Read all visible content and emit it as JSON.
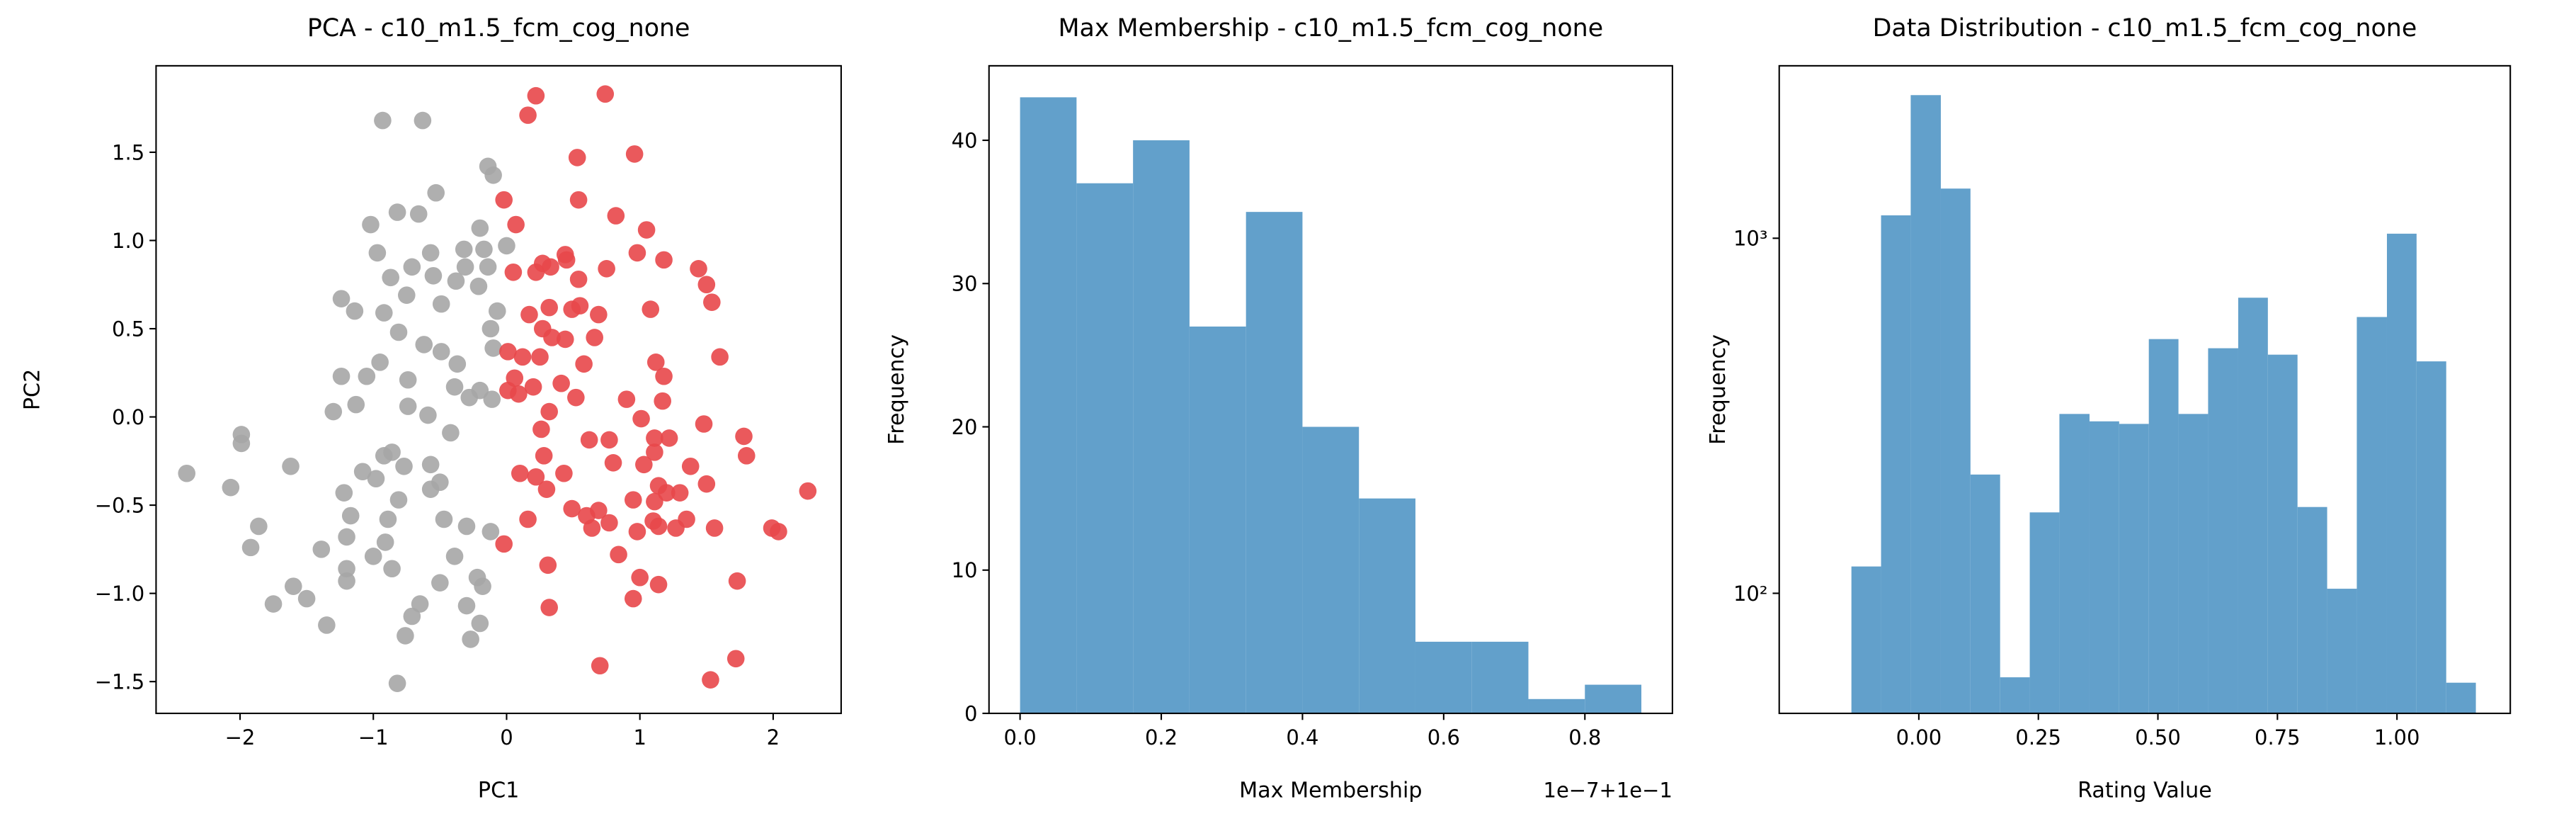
{
  "chart_data": [
    {
      "type": "scatter",
      "title": "PCA - c10_m1.5_fcm_cog_none",
      "xlabel": "PC1",
      "ylabel": "PC2",
      "xlim": [
        -2.63,
        2.51
      ],
      "ylim": [
        -1.68,
        1.99
      ],
      "xticks": [
        {
          "value": -2,
          "label": "−2"
        },
        {
          "value": -1,
          "label": "−1"
        },
        0,
        1,
        2
      ],
      "yticks": [
        {
          "value": -1.5,
          "label": "−1.5"
        },
        {
          "value": -1.0,
          "label": "−1.0"
        },
        {
          "value": -0.5,
          "label": "−0.5"
        },
        {
          "value": 0.0,
          "label": "0.0"
        },
        0.5,
        {
          "value": 1.0,
          "label": "1.0"
        },
        1.5
      ],
      "series": [
        {
          "color": "#a6a6a6",
          "x": [
            -0.93,
            -0.63,
            -0.14,
            -0.1,
            -0.53,
            -0.82,
            -0.66,
            -1.02,
            -0.2,
            -0.97,
            -0.57,
            -0.32,
            -0.17,
            0,
            -0.71,
            -0.55,
            -0.31,
            -0.14,
            -0.38,
            -0.21,
            -0.87,
            -0.75,
            -0.49,
            -1.24,
            -1.14,
            -0.92,
            -0.07,
            -0.12,
            -0.81,
            -0.62,
            -0.49,
            -0.1,
            -0.95,
            -0.37,
            -1.24,
            -1.05,
            -0.74,
            -0.39,
            -0.2,
            -0.28,
            -0.11,
            -1.13,
            -0.74,
            -0.59,
            -1.3,
            -0.42,
            -1.99,
            -1.99,
            -1.62,
            -0.92,
            -0.86,
            -0.77,
            -0.57,
            -2.4,
            -1.08,
            -2.07,
            -0.98,
            -0.5,
            -1.22,
            -0.81,
            -0.57,
            -1.86,
            -1.17,
            -0.89,
            -0.47,
            -0.3,
            -1.2,
            -0.12,
            -1.92,
            -1.39,
            -0.91,
            -1.0,
            -0.39,
            -1.2,
            -0.86,
            -1.2,
            -0.5,
            -0.22,
            -1.6,
            -0.18,
            -1.5,
            -1.75,
            -0.65,
            -0.3,
            -1.35,
            -0.2,
            -0.71,
            -0.76,
            -0.27,
            -0.82
          ],
          "y": [
            1.68,
            1.68,
            1.42,
            1.37,
            1.27,
            1.16,
            1.15,
            1.09,
            1.07,
            0.93,
            0.93,
            0.95,
            0.95,
            0.97,
            0.85,
            0.8,
            0.85,
            0.85,
            0.77,
            0.74,
            0.79,
            0.69,
            0.64,
            0.67,
            0.6,
            0.59,
            0.6,
            0.5,
            0.48,
            0.41,
            0.37,
            0.39,
            0.31,
            0.3,
            0.23,
            0.23,
            0.21,
            0.17,
            0.15,
            0.11,
            0.1,
            0.07,
            0.06,
            0.01,
            0.03,
            -0.09,
            -0.1,
            -0.15,
            -0.28,
            -0.22,
            -0.2,
            -0.28,
            -0.27,
            -0.32,
            -0.31,
            -0.4,
            -0.35,
            -0.37,
            -0.43,
            -0.47,
            -0.41,
            -0.62,
            -0.56,
            -0.58,
            -0.58,
            -0.62,
            -0.68,
            -0.65,
            -0.74,
            -0.75,
            -0.71,
            -0.79,
            -0.79,
            -0.86,
            -0.86,
            -0.93,
            -0.94,
            -0.91,
            -0.96,
            -0.96,
            -1.03,
            -1.06,
            -1.06,
            -1.07,
            -1.18,
            -1.17,
            -1.13,
            -1.24,
            -1.26,
            -1.51
          ]
        },
        {
          "color": "#e8474a",
          "x": [
            0.22,
            0.74,
            0.16,
            0.53,
            0.96,
            -0.02,
            0.54,
            0.07,
            0.82,
            1.05,
            0.44,
            0.45,
            0.98,
            1.18,
            0.27,
            0.22,
            0.33,
            0.05,
            1.44,
            1.5,
            1.54,
            0.54,
            0.75,
            0.49,
            0.55,
            0.32,
            0.17,
            1.08,
            0.69,
            0.27,
            0.44,
            0.66,
            0.34,
            0.01,
            0.12,
            0.25,
            0.58,
            1.12,
            1.6,
            0.06,
            0.2,
            0.41,
            1.18,
            0.01,
            0.52,
            0.09,
            0.9,
            1.17,
            0.32,
            1.01,
            0.26,
            0.62,
            0.77,
            1.78,
            1.48,
            1.11,
            1.22,
            0.28,
            1.11,
            1.8,
            1.03,
            0.8,
            0.1,
            0.22,
            0.43,
            1.38,
            2.26,
            1.14,
            0.95,
            1.2,
            1.3,
            1.5,
            0.3,
            1.11,
            0.49,
            0.69,
            0.16,
            0.6,
            0.77,
            1.1,
            1.35,
            1.56,
            1.99,
            2.04,
            0.64,
            0.98,
            1.14,
            1.27,
            -0.02,
            0.31,
            0.84,
            1.0,
            1.14,
            1.73,
            0.95,
            0.32,
            1.72,
            0.7,
            1.53
          ],
          "y": [
            1.82,
            1.83,
            1.71,
            1.47,
            1.49,
            1.23,
            1.23,
            1.09,
            1.14,
            1.06,
            0.92,
            0.89,
            0.93,
            0.89,
            0.87,
            0.82,
            0.85,
            0.82,
            0.84,
            0.75,
            0.65,
            0.78,
            0.84,
            0.61,
            0.63,
            0.62,
            0.58,
            0.61,
            0.58,
            0.5,
            0.44,
            0.45,
            0.45,
            0.37,
            0.34,
            0.34,
            0.3,
            0.31,
            0.34,
            0.22,
            0.17,
            0.19,
            0.23,
            0.15,
            0.11,
            0.13,
            0.1,
            0.09,
            0.03,
            -0.01,
            -0.07,
            -0.13,
            -0.13,
            -0.11,
            -0.04,
            -0.12,
            -0.12,
            -0.22,
            -0.2,
            -0.22,
            -0.27,
            -0.26,
            -0.32,
            -0.34,
            -0.32,
            -0.28,
            -0.42,
            -0.39,
            -0.47,
            -0.43,
            -0.43,
            -0.38,
            -0.41,
            -0.48,
            -0.52,
            -0.53,
            -0.58,
            -0.56,
            -0.6,
            -0.59,
            -0.58,
            -0.63,
            -0.63,
            -0.65,
            -0.63,
            -0.65,
            -0.62,
            -0.63,
            -0.72,
            -0.84,
            -0.78,
            -0.91,
            -0.95,
            -0.93,
            -1.03,
            -1.08,
            -1.37,
            -1.41,
            -1.49
          ]
        }
      ]
    },
    {
      "type": "histogram",
      "title": "Max Membership - c10_m1.5_fcm_cog_none",
      "xlabel": "Max Membership",
      "ylabel": "Frequency",
      "x_offset_label": "1e−7+1e−1",
      "color": "#62a0cb",
      "bins": [
        0,
        0.08,
        0.16,
        0.24,
        0.32,
        0.4,
        0.48,
        0.56,
        0.64,
        0.72,
        0.8,
        0.88
      ],
      "values": [
        43,
        37,
        40,
        27,
        35,
        20,
        15,
        5,
        5,
        1,
        2
      ],
      "xlim": [
        -0.044,
        0.924
      ],
      "ylim": [
        0,
        45.2
      ],
      "xticks": [
        {
          "value": 0.0,
          "label": "0.0"
        },
        0.2,
        0.4,
        0.6,
        0.8
      ],
      "yticks": [
        0,
        10,
        20,
        30,
        40
      ]
    },
    {
      "type": "histogram",
      "title": "Data Distribution - c10_m1.5_fcm_cog_none",
      "xlabel": "Rating Value",
      "ylabel": "Frequency",
      "log_y": true,
      "color": "#62a0cb",
      "bins": [
        -0.141,
        -0.079,
        -0.017,
        0.046,
        0.108,
        0.17,
        0.232,
        0.294,
        0.357,
        0.419,
        0.481,
        0.543,
        0.605,
        0.668,
        0.73,
        0.792,
        0.854,
        0.916,
        0.979,
        1.041,
        1.103,
        1.165
      ],
      "values": [
        119,
        1160,
        2530,
        1380,
        216,
        58,
        169,
        320,
        305,
        300,
        520,
        320,
        490,
        680,
        470,
        175,
        103,
        600,
        1030,
        450,
        56
      ],
      "xlim": [
        -0.292,
        1.237
      ],
      "ylim": [
        45.9,
        3060
      ],
      "xticks": [
        {
          "value": 0.0,
          "label": "0.00"
        },
        0.25,
        {
          "value": 0.5,
          "label": "0.50"
        },
        0.75,
        {
          "value": 1.0,
          "label": "1.00"
        }
      ],
      "yticks": [
        {
          "value": 100,
          "label": "10²"
        },
        {
          "value": 1000,
          "label": "10³"
        }
      ]
    }
  ]
}
